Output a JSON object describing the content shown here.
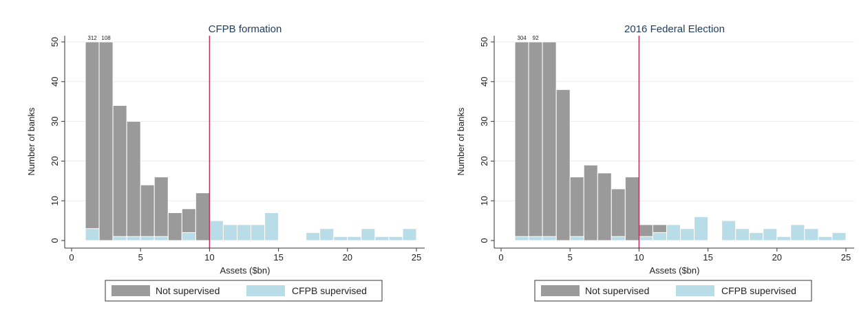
{
  "chart_data": [
    {
      "type": "bar",
      "title": "CFPB formation",
      "xlabel": "Assets ($bn)",
      "ylabel": "Number of banks",
      "xlim": [
        0,
        25
      ],
      "ylim": [
        0,
        50
      ],
      "xticks": [
        "0",
        "5",
        "10",
        "15",
        "20",
        "25"
      ],
      "yticks": [
        "0",
        "10",
        "20",
        "30",
        "40",
        "50"
      ],
      "grid": true,
      "legend_position": "bottom",
      "vline": {
        "x": 10,
        "color": "#c0305a"
      },
      "bin_width": 1,
      "bar_top_labels": [
        "312",
        "108"
      ],
      "series": [
        {
          "name": "Not supervised",
          "color": "#9a9a9a",
          "bins": [
            {
              "x": 1,
              "value": 50
            },
            {
              "x": 2,
              "value": 50
            },
            {
              "x": 3,
              "value": 34
            },
            {
              "x": 4,
              "value": 30
            },
            {
              "x": 5,
              "value": 14
            },
            {
              "x": 6,
              "value": 16
            },
            {
              "x": 7,
              "value": 7
            },
            {
              "x": 8,
              "value": 8
            },
            {
              "x": 9,
              "value": 12
            }
          ]
        },
        {
          "name": "CFPB supervised",
          "color": "#b8dde8",
          "bins": [
            {
              "x": 1,
              "value": 3
            },
            {
              "x": 3,
              "value": 1
            },
            {
              "x": 4,
              "value": 1
            },
            {
              "x": 5,
              "value": 1
            },
            {
              "x": 6,
              "value": 1
            },
            {
              "x": 8,
              "value": 2
            },
            {
              "x": 10,
              "value": 5
            },
            {
              "x": 11,
              "value": 4
            },
            {
              "x": 12,
              "value": 4
            },
            {
              "x": 13,
              "value": 4
            },
            {
              "x": 14,
              "value": 7
            },
            {
              "x": 17,
              "value": 2
            },
            {
              "x": 18,
              "value": 3
            },
            {
              "x": 19,
              "value": 1
            },
            {
              "x": 20,
              "value": 1
            },
            {
              "x": 21,
              "value": 3
            },
            {
              "x": 22,
              "value": 1
            },
            {
              "x": 23,
              "value": 1
            },
            {
              "x": 24,
              "value": 3
            }
          ]
        }
      ]
    },
    {
      "type": "bar",
      "title": "2016 Federal Election",
      "xlabel": "Assets ($bn)",
      "ylabel": "Number of banks",
      "xlim": [
        0,
        25
      ],
      "ylim": [
        0,
        50
      ],
      "xticks": [
        "0",
        "5",
        "10",
        "15",
        "20",
        "25"
      ],
      "yticks": [
        "0",
        "10",
        "20",
        "30",
        "40",
        "50"
      ],
      "grid": true,
      "legend_position": "bottom",
      "vline": {
        "x": 10,
        "color": "#c0305a"
      },
      "bin_width": 1,
      "bar_top_labels": [
        "304",
        "92"
      ],
      "series": [
        {
          "name": "Not supervised",
          "color": "#9a9a9a",
          "bins": [
            {
              "x": 1,
              "value": 50
            },
            {
              "x": 2,
              "value": 50
            },
            {
              "x": 3,
              "value": 50
            },
            {
              "x": 4,
              "value": 38
            },
            {
              "x": 5,
              "value": 16
            },
            {
              "x": 6,
              "value": 19
            },
            {
              "x": 7,
              "value": 17
            },
            {
              "x": 8,
              "value": 13
            },
            {
              "x": 9,
              "value": 16
            },
            {
              "x": 10,
              "value": 4
            },
            {
              "x": 11,
              "value": 4
            }
          ]
        },
        {
          "name": "CFPB supervised",
          "color": "#b8dde8",
          "bins": [
            {
              "x": 1,
              "value": 1
            },
            {
              "x": 2,
              "value": 1
            },
            {
              "x": 3,
              "value": 1
            },
            {
              "x": 5,
              "value": 1
            },
            {
              "x": 8,
              "value": 1
            },
            {
              "x": 10,
              "value": 1
            },
            {
              "x": 11,
              "value": 2
            },
            {
              "x": 12,
              "value": 4
            },
            {
              "x": 13,
              "value": 3
            },
            {
              "x": 14,
              "value": 6
            },
            {
              "x": 16,
              "value": 5
            },
            {
              "x": 17,
              "value": 3
            },
            {
              "x": 18,
              "value": 2
            },
            {
              "x": 19,
              "value": 3
            },
            {
              "x": 20,
              "value": 1
            },
            {
              "x": 21,
              "value": 4
            },
            {
              "x": 22,
              "value": 3
            },
            {
              "x": 23,
              "value": 1
            },
            {
              "x": 24,
              "value": 2
            }
          ]
        }
      ]
    }
  ]
}
